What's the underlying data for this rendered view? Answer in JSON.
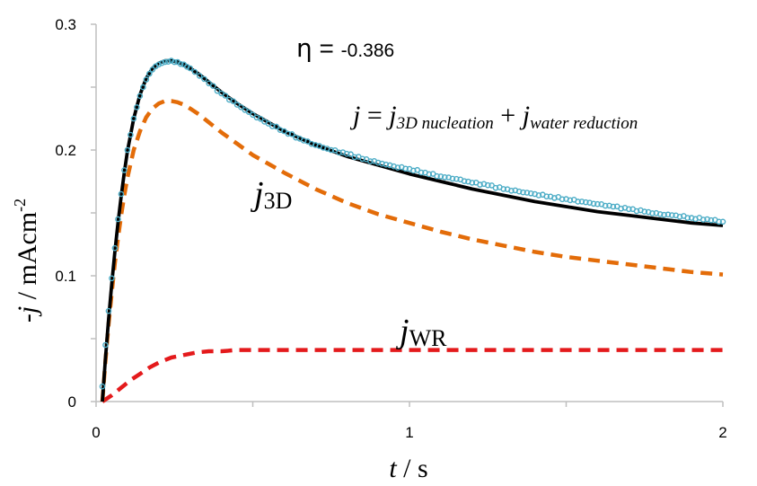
{
  "chart_data": {
    "type": "line",
    "title": "",
    "xlabel": {
      "var": "t",
      "unit": " / s"
    },
    "ylabel": {
      "prefix": "-",
      "var": "j",
      "unit": " / mAcm",
      "sup": "-2"
    },
    "xlim": [
      0,
      2
    ],
    "ylim": [
      0,
      0.3
    ],
    "xticks": [
      "0",
      "1",
      "2"
    ],
    "yticks": [
      "0",
      "0.1",
      "0.2",
      "0.3"
    ],
    "grid": false,
    "legend": "none",
    "colors": {
      "experimental": "#4bacc6",
      "total_fit": "#000000",
      "j3d": "#e36c09",
      "jwr": "#e41a1c",
      "axis": "#bfbfbf"
    },
    "annotations": {
      "eta": {
        "symbol": "η",
        "equals": " = ",
        "value": "-0.386"
      },
      "equation": {
        "lhs": "j",
        "eq": " = ",
        "term1_var": "j",
        "term1_sub": "3D nucleation",
        "plus": " + ",
        "term2_var": "j",
        "term2_sub": "water reduction"
      },
      "j3d_label": {
        "var": "j",
        "sub": "3D"
      },
      "jwr_label": {
        "var": "j",
        "sub": "WR"
      }
    },
    "series": [
      {
        "key": "experimental",
        "style": "markers",
        "x": [
          0.02,
          0.03,
          0.04,
          0.05,
          0.06,
          0.07,
          0.08,
          0.09,
          0.1,
          0.12,
          0.14,
          0.16,
          0.18,
          0.2,
          0.22,
          0.24,
          0.26,
          0.28,
          0.3,
          0.33,
          0.36,
          0.4,
          0.45,
          0.5,
          0.55,
          0.6,
          0.65,
          0.7,
          0.75,
          0.8,
          0.85,
          0.9,
          0.95,
          1.0,
          1.05,
          1.1,
          1.15,
          1.2,
          1.25,
          1.3,
          1.35,
          1.4,
          1.45,
          1.5,
          1.55,
          1.6,
          1.65,
          1.7,
          1.75,
          1.8,
          1.85,
          1.9,
          1.95,
          2.0
        ],
        "y": [
          0.012,
          0.045,
          0.072,
          0.098,
          0.122,
          0.145,
          0.165,
          0.184,
          0.2,
          0.225,
          0.243,
          0.256,
          0.264,
          0.268,
          0.27,
          0.271,
          0.27,
          0.268,
          0.265,
          0.259,
          0.253,
          0.245,
          0.236,
          0.228,
          0.221,
          0.215,
          0.209,
          0.204,
          0.2,
          0.197,
          0.193,
          0.19,
          0.187,
          0.185,
          0.182,
          0.179,
          0.177,
          0.174,
          0.172,
          0.169,
          0.167,
          0.165,
          0.163,
          0.161,
          0.159,
          0.157,
          0.155,
          0.153,
          0.151,
          0.149,
          0.148,
          0.146,
          0.145,
          0.143
        ]
      },
      {
        "key": "total_fit",
        "style": "solid",
        "x": [
          0.02,
          0.03,
          0.04,
          0.05,
          0.06,
          0.07,
          0.08,
          0.09,
          0.1,
          0.12,
          0.14,
          0.16,
          0.18,
          0.2,
          0.22,
          0.24,
          0.26,
          0.28,
          0.3,
          0.33,
          0.36,
          0.4,
          0.45,
          0.5,
          0.55,
          0.6,
          0.7,
          0.8,
          0.9,
          1.0,
          1.1,
          1.2,
          1.3,
          1.4,
          1.5,
          1.6,
          1.7,
          1.8,
          1.9,
          2.0
        ],
        "y": [
          0.0,
          0.035,
          0.066,
          0.094,
          0.119,
          0.142,
          0.163,
          0.182,
          0.199,
          0.225,
          0.244,
          0.257,
          0.265,
          0.269,
          0.271,
          0.271,
          0.27,
          0.268,
          0.265,
          0.26,
          0.254,
          0.246,
          0.237,
          0.229,
          0.222,
          0.215,
          0.204,
          0.195,
          0.188,
          0.181,
          0.175,
          0.169,
          0.164,
          0.159,
          0.155,
          0.151,
          0.148,
          0.145,
          0.142,
          0.14
        ]
      },
      {
        "key": "j3d",
        "style": "dashed",
        "x": [
          0.02,
          0.03,
          0.04,
          0.05,
          0.06,
          0.07,
          0.08,
          0.09,
          0.1,
          0.12,
          0.14,
          0.16,
          0.18,
          0.2,
          0.22,
          0.24,
          0.26,
          0.28,
          0.3,
          0.33,
          0.36,
          0.4,
          0.45,
          0.5,
          0.55,
          0.6,
          0.7,
          0.8,
          0.9,
          1.0,
          1.1,
          1.2,
          1.3,
          1.4,
          1.5,
          1.6,
          1.7,
          1.8,
          1.9,
          2.0
        ],
        "y": [
          0.0,
          0.033,
          0.062,
          0.087,
          0.11,
          0.13,
          0.148,
          0.164,
          0.178,
          0.2,
          0.215,
          0.226,
          0.233,
          0.237,
          0.239,
          0.239,
          0.238,
          0.236,
          0.233,
          0.228,
          0.222,
          0.214,
          0.205,
          0.196,
          0.189,
          0.182,
          0.169,
          0.158,
          0.149,
          0.142,
          0.135,
          0.129,
          0.124,
          0.119,
          0.115,
          0.112,
          0.109,
          0.106,
          0.103,
          0.101
        ]
      },
      {
        "key": "jwr",
        "style": "dashed",
        "x": [
          0.02,
          0.05,
          0.08,
          0.11,
          0.14,
          0.17,
          0.2,
          0.24,
          0.28,
          0.32,
          0.36,
          0.4,
          0.45,
          0.5,
          0.6,
          0.7,
          0.8,
          1.0,
          1.2,
          1.4,
          1.6,
          1.8,
          2.0
        ],
        "y": [
          0.0,
          0.005,
          0.011,
          0.017,
          0.022,
          0.027,
          0.031,
          0.035,
          0.037,
          0.039,
          0.04,
          0.04,
          0.041,
          0.041,
          0.041,
          0.041,
          0.041,
          0.041,
          0.041,
          0.041,
          0.041,
          0.041,
          0.041
        ]
      }
    ]
  }
}
